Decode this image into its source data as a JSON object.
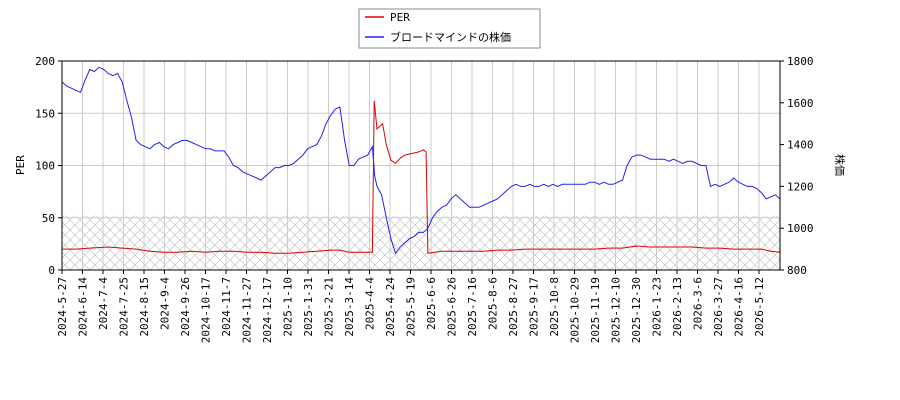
{
  "chart_data": {
    "type": "line",
    "title": "",
    "legend": {
      "placement": "top-center",
      "entries": [
        {
          "label": "PER",
          "color": "#dd0000"
        },
        {
          "label": "ブロードマインドの株価",
          "color": "#2222ee"
        }
      ]
    },
    "x_axis": {
      "tick_labels": [
        "2024-5-27",
        "2024-6-14",
        "2024-7-4",
        "2024-7-25",
        "2024-8-15",
        "2024-9-4",
        "2024-9-26",
        "2024-10-17",
        "2024-11-7",
        "2024-11-27",
        "2024-12-17",
        "2025-1-10",
        "2025-1-31",
        "2025-2-21",
        "2025-3-14",
        "2025-4-4",
        "2025-4-24",
        "2025-5-19",
        "2025-6-6",
        "2025-6-26",
        "2025-7-16",
        "2025-8-6",
        "2025-8-27",
        "2025-9-17",
        "2025-10-8",
        "2025-10-29",
        "2025-11-19",
        "2025-12-10",
        "2025-12-30",
        "2026-1-23",
        "2026-2-13",
        "2026-3-6",
        "2026-3-27",
        "2026-4-16",
        "2026-5-12"
      ]
    },
    "y_left": {
      "label": "PER",
      "range": [
        0,
        200
      ],
      "ticks": [
        0,
        50,
        100,
        150,
        200
      ]
    },
    "y_right": {
      "label": "株価",
      "range": [
        800,
        1800
      ],
      "ticks": [
        800,
        1000,
        1200,
        1400,
        1600,
        1800
      ]
    },
    "grid": true,
    "hatch_band": {
      "axis": "left",
      "from": 0,
      "to": 52
    },
    "series": [
      {
        "name": "PER",
        "axis": "left",
        "color": "#dd0000",
        "points": [
          [
            0,
            20
          ],
          [
            3,
            20
          ],
          [
            6,
            21
          ],
          [
            10,
            22
          ],
          [
            13,
            21
          ],
          [
            16,
            20
          ],
          [
            19,
            18
          ],
          [
            22,
            17
          ],
          [
            25,
            17
          ],
          [
            28,
            18
          ],
          [
            31,
            17
          ],
          [
            34,
            18
          ],
          [
            37,
            18
          ],
          [
            40,
            17
          ],
          [
            43,
            17
          ],
          [
            46,
            16
          ],
          [
            49,
            16
          ],
          [
            52,
            17
          ],
          [
            55,
            18
          ],
          [
            58,
            19
          ],
          [
            60,
            19
          ],
          [
            62,
            17
          ],
          [
            65,
            17
          ],
          [
            67,
            17
          ],
          [
            67.4,
            162
          ],
          [
            68,
            135
          ],
          [
            69.2,
            140
          ],
          [
            70,
            120
          ],
          [
            71,
            105
          ],
          [
            72,
            102
          ],
          [
            73,
            107
          ],
          [
            74,
            110
          ],
          [
            75,
            111
          ],
          [
            76,
            112
          ],
          [
            77,
            113
          ],
          [
            78,
            115
          ],
          [
            78.6,
            113
          ],
          [
            79,
            16
          ],
          [
            82,
            18
          ],
          [
            85,
            18
          ],
          [
            88,
            18
          ],
          [
            91,
            18
          ],
          [
            94,
            19
          ],
          [
            97,
            19
          ],
          [
            100,
            20
          ],
          [
            103,
            20
          ],
          [
            106,
            20
          ],
          [
            109,
            20
          ],
          [
            112,
            20
          ],
          [
            115,
            20
          ],
          [
            118,
            21
          ],
          [
            121,
            21
          ],
          [
            124,
            23
          ],
          [
            127,
            22
          ],
          [
            130,
            22
          ],
          [
            133,
            22
          ],
          [
            136,
            22
          ],
          [
            139,
            21
          ],
          [
            142,
            21
          ],
          [
            145,
            20
          ],
          [
            148,
            20
          ],
          [
            151,
            20
          ],
          [
            153,
            18
          ],
          [
            155,
            17
          ]
        ]
      },
      {
        "name": "ブロードマインドの株価",
        "axis": "right",
        "color": "#2222ee",
        "points": [
          [
            0,
            1700
          ],
          [
            1,
            1680
          ],
          [
            2,
            1670
          ],
          [
            3,
            1660
          ],
          [
            4,
            1650
          ],
          [
            5,
            1710
          ],
          [
            6,
            1760
          ],
          [
            7,
            1750
          ],
          [
            8,
            1770
          ],
          [
            9,
            1760
          ],
          [
            10,
            1740
          ],
          [
            11,
            1730
          ],
          [
            12,
            1740
          ],
          [
            13,
            1700
          ],
          [
            14,
            1610
          ],
          [
            15,
            1530
          ],
          [
            16,
            1420
          ],
          [
            17,
            1400
          ],
          [
            18,
            1390
          ],
          [
            19,
            1380
          ],
          [
            20,
            1400
          ],
          [
            21,
            1410
          ],
          [
            22,
            1390
          ],
          [
            23,
            1380
          ],
          [
            24,
            1400
          ],
          [
            25,
            1410
          ],
          [
            26,
            1420
          ],
          [
            27,
            1420
          ],
          [
            28,
            1410
          ],
          [
            29,
            1400
          ],
          [
            30,
            1390
          ],
          [
            31,
            1380
          ],
          [
            32,
            1380
          ],
          [
            33,
            1370
          ],
          [
            34,
            1370
          ],
          [
            35,
            1370
          ],
          [
            36,
            1340
          ],
          [
            37,
            1300
          ],
          [
            38,
            1290
          ],
          [
            39,
            1270
          ],
          [
            40,
            1260
          ],
          [
            41,
            1250
          ],
          [
            42,
            1240
          ],
          [
            43,
            1230
          ],
          [
            44,
            1250
          ],
          [
            45,
            1270
          ],
          [
            46,
            1290
          ],
          [
            47,
            1290
          ],
          [
            48,
            1300
          ],
          [
            49,
            1300
          ],
          [
            50,
            1310
          ],
          [
            51,
            1330
          ],
          [
            52,
            1350
          ],
          [
            53,
            1380
          ],
          [
            54,
            1390
          ],
          [
            55,
            1400
          ],
          [
            56,
            1440
          ],
          [
            57,
            1500
          ],
          [
            58,
            1540
          ],
          [
            59,
            1570
          ],
          [
            60,
            1580
          ],
          [
            61,
            1420
          ],
          [
            62,
            1300
          ],
          [
            63,
            1300
          ],
          [
            64,
            1330
          ],
          [
            65,
            1340
          ],
          [
            66,
            1350
          ],
          [
            67,
            1390
          ],
          [
            67.5,
            1250
          ],
          [
            68,
            1200
          ],
          [
            69,
            1160
          ],
          [
            70,
            1050
          ],
          [
            71,
            950
          ],
          [
            72,
            880
          ],
          [
            73,
            910
          ],
          [
            74,
            930
          ],
          [
            75,
            950
          ],
          [
            76,
            960
          ],
          [
            77,
            980
          ],
          [
            78,
            980
          ],
          [
            79,
            1000
          ],
          [
            80,
            1050
          ],
          [
            81,
            1080
          ],
          [
            82,
            1100
          ],
          [
            83,
            1110
          ],
          [
            84,
            1140
          ],
          [
            85,
            1160
          ],
          [
            86,
            1140
          ],
          [
            87,
            1120
          ],
          [
            88,
            1100
          ],
          [
            89,
            1100
          ],
          [
            90,
            1100
          ],
          [
            91,
            1110
          ],
          [
            92,
            1120
          ],
          [
            93,
            1130
          ],
          [
            94,
            1140
          ],
          [
            95,
            1160
          ],
          [
            96,
            1180
          ],
          [
            97,
            1200
          ],
          [
            98,
            1210
          ],
          [
            99,
            1200
          ],
          [
            100,
            1200
          ],
          [
            101,
            1210
          ],
          [
            102,
            1200
          ],
          [
            103,
            1200
          ],
          [
            104,
            1210
          ],
          [
            105,
            1200
          ],
          [
            106,
            1210
          ],
          [
            107,
            1200
          ],
          [
            108,
            1210
          ],
          [
            109,
            1210
          ],
          [
            110,
            1210
          ],
          [
            111,
            1210
          ],
          [
            112,
            1210
          ],
          [
            113,
            1210
          ],
          [
            114,
            1220
          ],
          [
            115,
            1220
          ],
          [
            116,
            1210
          ],
          [
            117,
            1220
          ],
          [
            118,
            1210
          ],
          [
            119,
            1210
          ],
          [
            120,
            1220
          ],
          [
            121,
            1230
          ],
          [
            122,
            1300
          ],
          [
            123,
            1340
          ],
          [
            124,
            1350
          ],
          [
            125,
            1350
          ],
          [
            126,
            1340
          ],
          [
            127,
            1330
          ],
          [
            128,
            1330
          ],
          [
            129,
            1330
          ],
          [
            130,
            1330
          ],
          [
            131,
            1320
          ],
          [
            132,
            1330
          ],
          [
            133,
            1320
          ],
          [
            134,
            1310
          ],
          [
            135,
            1320
          ],
          [
            136,
            1320
          ],
          [
            137,
            1310
          ],
          [
            138,
            1300
          ],
          [
            139,
            1300
          ],
          [
            140,
            1200
          ],
          [
            141,
            1210
          ],
          [
            142,
            1200
          ],
          [
            143,
            1210
          ],
          [
            144,
            1220
          ],
          [
            145,
            1240
          ],
          [
            146,
            1220
          ],
          [
            147,
            1210
          ],
          [
            148,
            1200
          ],
          [
            149,
            1200
          ],
          [
            150,
            1190
          ],
          [
            151,
            1170
          ],
          [
            152,
            1140
          ],
          [
            153,
            1150
          ],
          [
            154,
            1160
          ],
          [
            155,
            1140
          ]
        ]
      }
    ]
  }
}
